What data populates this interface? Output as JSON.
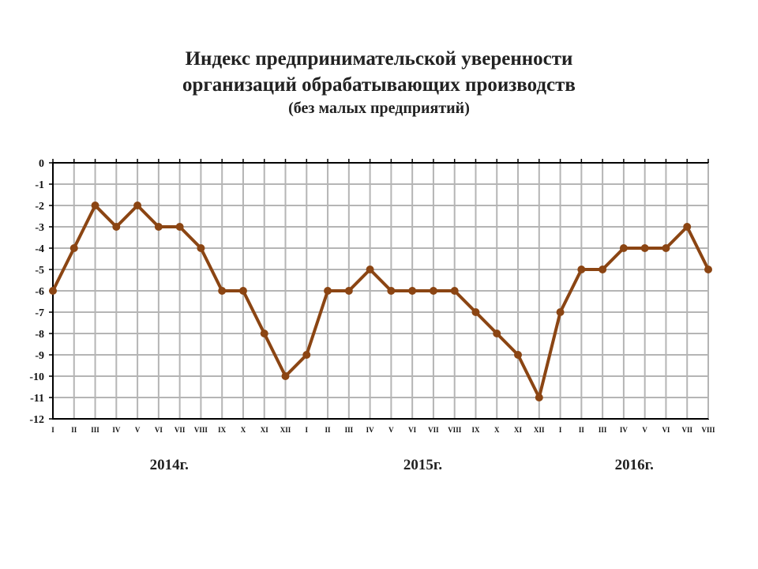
{
  "chart_data": {
    "type": "line",
    "title_line1": "Индекс предпринимательской уверенности",
    "title_line2": "организаций  обрабатывающих производств",
    "subtitle": "(без малых предприятий)",
    "ylim": [
      -12,
      0
    ],
    "yticks": [
      0,
      -1,
      -2,
      -3,
      -4,
      -5,
      -6,
      -7,
      -8,
      -9,
      -10,
      -11,
      -12
    ],
    "grid": true,
    "categories": [
      "I",
      "II",
      "III",
      "IV",
      "V",
      "VI",
      "VII",
      "VIII",
      "IX",
      "X",
      "XI",
      "XII",
      "I",
      "II",
      "III",
      "IV",
      "V",
      "VI",
      "VII",
      "VIII",
      "IX",
      "X",
      "XI",
      "XII",
      "I",
      "II",
      "III",
      "IV",
      "V",
      "VI",
      "VII",
      "VIII"
    ],
    "year_labels": [
      {
        "label": "2014г.",
        "start_index": 0,
        "end_index": 11
      },
      {
        "label": "2015г.",
        "start_index": 12,
        "end_index": 23
      },
      {
        "label": "2016г.",
        "start_index": 24,
        "end_index": 31
      }
    ],
    "series": [
      {
        "color": "#8b4513",
        "values": [
          -6,
          -4,
          -2,
          -3,
          -2,
          -3,
          -3,
          -4,
          -6,
          -6,
          -8,
          -10,
          -9,
          -6,
          -6,
          -5,
          -6,
          -6,
          -6,
          -6,
          -7,
          -8,
          -9,
          -11,
          -7,
          -5,
          -5,
          -4,
          -4,
          -4,
          -3,
          -5
        ]
      }
    ]
  }
}
